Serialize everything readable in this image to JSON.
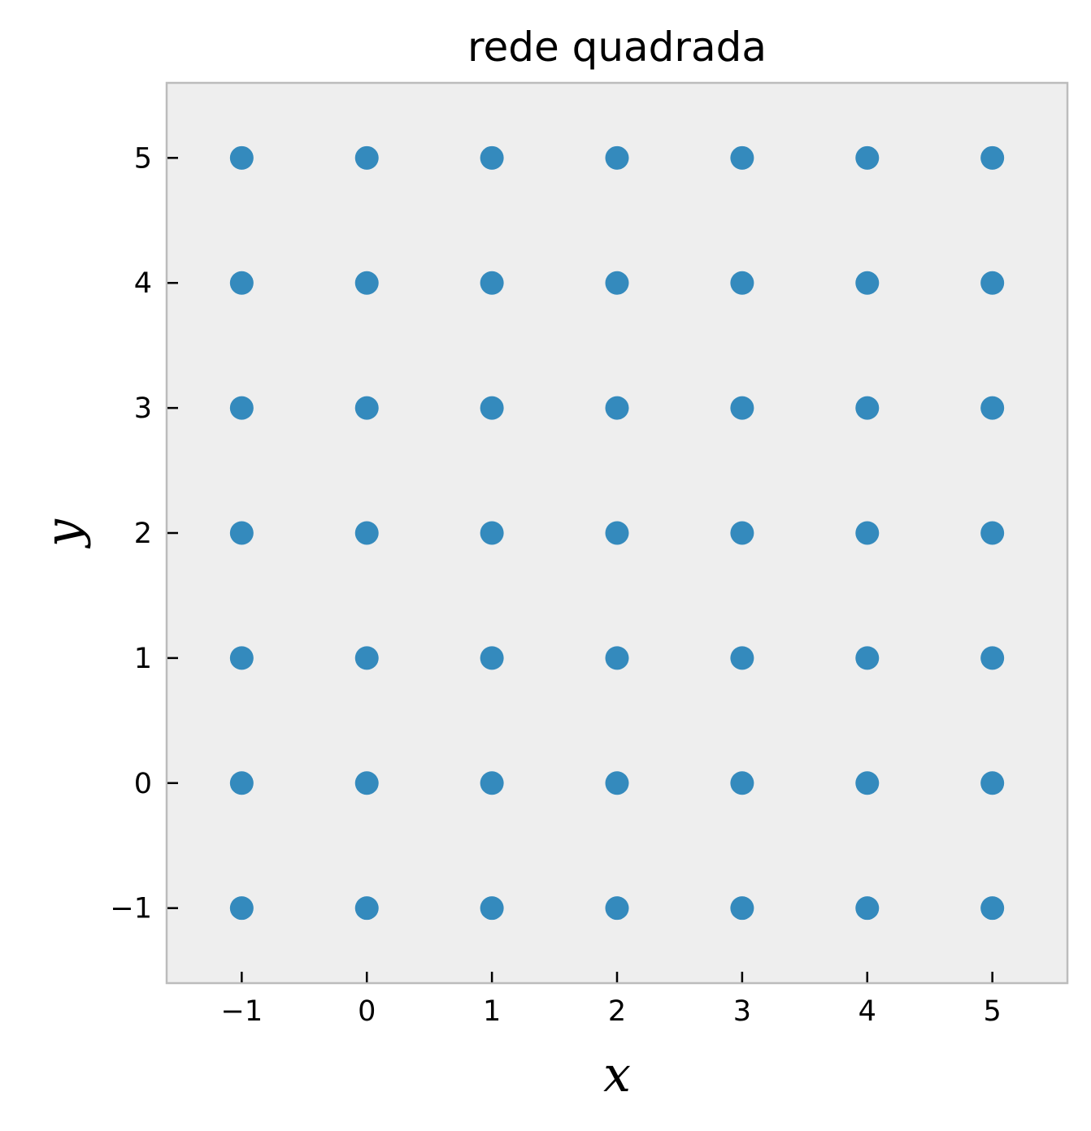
{
  "chart_data": {
    "type": "scatter",
    "title": "rede quadrada",
    "xlabel": "x",
    "ylabel": "y",
    "xlim": [
      -1.6,
      5.6
    ],
    "ylim": [
      -1.6,
      5.6
    ],
    "xticks": [
      -1,
      0,
      1,
      2,
      3,
      4,
      5
    ],
    "yticks": [
      -1,
      0,
      1,
      2,
      3,
      4,
      5
    ],
    "xtick_labels": [
      "−1",
      "0",
      "1",
      "2",
      "3",
      "4",
      "5"
    ],
    "ytick_labels": [
      "−1",
      "0",
      "1",
      "2",
      "3",
      "4",
      "5"
    ],
    "grid": false,
    "legend": "none",
    "series": [
      {
        "color": "#348abd",
        "points": [
          {
            "x": -1,
            "y": -1
          },
          {
            "x": 0,
            "y": -1
          },
          {
            "x": 1,
            "y": -1
          },
          {
            "x": 2,
            "y": -1
          },
          {
            "x": 3,
            "y": -1
          },
          {
            "x": 4,
            "y": -1
          },
          {
            "x": 5,
            "y": -1
          },
          {
            "x": -1,
            "y": 0
          },
          {
            "x": 0,
            "y": 0
          },
          {
            "x": 1,
            "y": 0
          },
          {
            "x": 2,
            "y": 0
          },
          {
            "x": 3,
            "y": 0
          },
          {
            "x": 4,
            "y": 0
          },
          {
            "x": 5,
            "y": 0
          },
          {
            "x": -1,
            "y": 1
          },
          {
            "x": 0,
            "y": 1
          },
          {
            "x": 1,
            "y": 1
          },
          {
            "x": 2,
            "y": 1
          },
          {
            "x": 3,
            "y": 1
          },
          {
            "x": 4,
            "y": 1
          },
          {
            "x": 5,
            "y": 1
          },
          {
            "x": -1,
            "y": 2
          },
          {
            "x": 0,
            "y": 2
          },
          {
            "x": 1,
            "y": 2
          },
          {
            "x": 2,
            "y": 2
          },
          {
            "x": 3,
            "y": 2
          },
          {
            "x": 4,
            "y": 2
          },
          {
            "x": 5,
            "y": 2
          },
          {
            "x": -1,
            "y": 3
          },
          {
            "x": 0,
            "y": 3
          },
          {
            "x": 1,
            "y": 3
          },
          {
            "x": 2,
            "y": 3
          },
          {
            "x": 3,
            "y": 3
          },
          {
            "x": 4,
            "y": 3
          },
          {
            "x": 5,
            "y": 3
          },
          {
            "x": -1,
            "y": 4
          },
          {
            "x": 0,
            "y": 4
          },
          {
            "x": 1,
            "y": 4
          },
          {
            "x": 2,
            "y": 4
          },
          {
            "x": 3,
            "y": 4
          },
          {
            "x": 4,
            "y": 4
          },
          {
            "x": 5,
            "y": 4
          },
          {
            "x": -1,
            "y": 5
          },
          {
            "x": 0,
            "y": 5
          },
          {
            "x": 1,
            "y": 5
          },
          {
            "x": 2,
            "y": 5
          },
          {
            "x": 3,
            "y": 5
          },
          {
            "x": 4,
            "y": 5
          },
          {
            "x": 5,
            "y": 5
          }
        ]
      }
    ],
    "plot_background": "#eeeeee",
    "frame_color": "#bcbcbc"
  }
}
